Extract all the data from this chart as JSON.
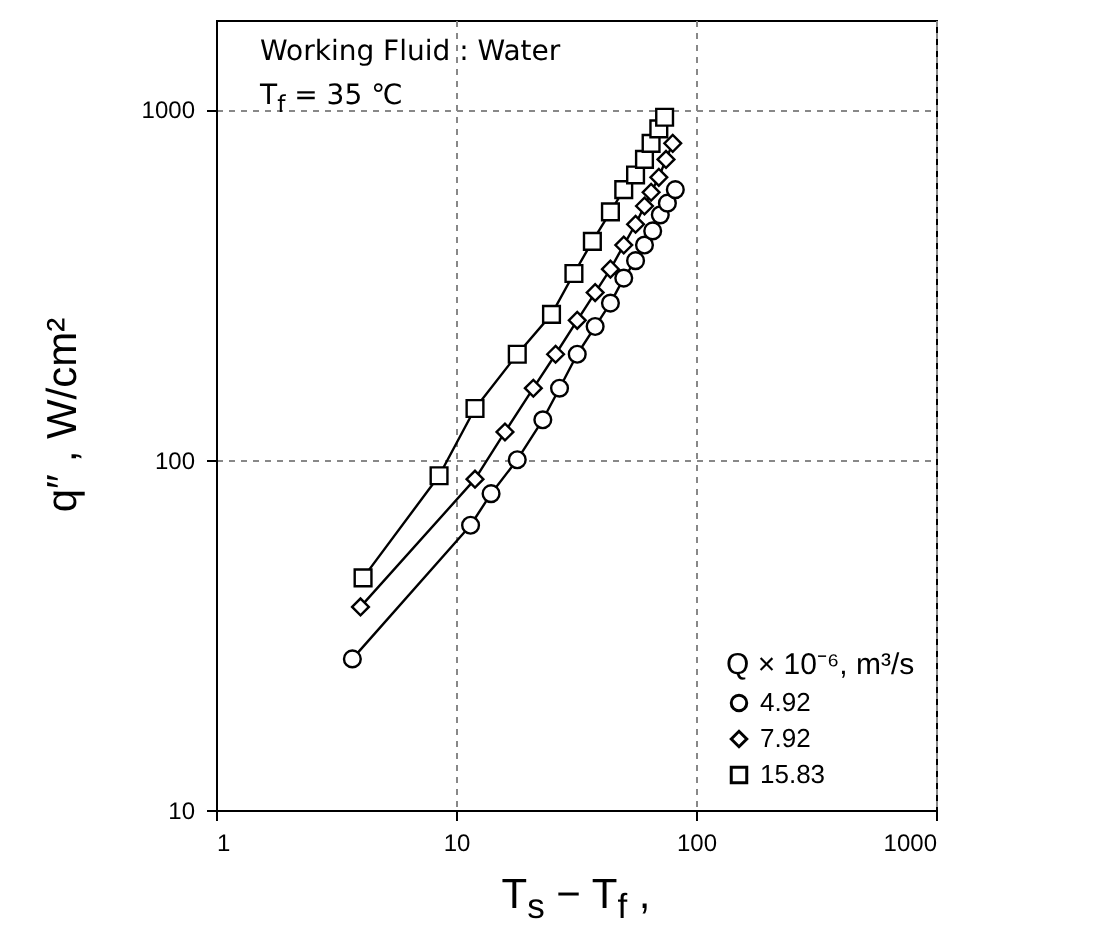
{
  "chart_data": {
    "type": "line",
    "xlabel": "T$_{s}$ − T$_{f}$ ,",
    "ylabel": "q″ ,  W/cm²",
    "legend_title": "Q × 10⁻⁶, m³/s",
    "annotations": [
      "Working Fluid : Water",
      "T$_{f}$ = 35 ℃"
    ],
    "log": "xy",
    "xlim": [
      1,
      1000
    ],
    "xticks": [
      1,
      10,
      100,
      1000
    ],
    "ylim": [
      10,
      1800
    ],
    "yticks": [
      10,
      100,
      1000
    ],
    "grid": true,
    "legend": "bottom right",
    "line_style": "solid",
    "series": [
      {
        "name": "4.92",
        "color": "#000000",
        "marker": "circle",
        "x": [
          3.7,
          11.5,
          14,
          18,
          23,
          27,
          32,
          38,
          44,
          50,
          56,
          61,
          66,
          71,
          76,
          82
        ],
        "values": [
          27,
          65,
          80,
          100,
          130,
          160,
          200,
          240,
          280,
          330,
          370,
          410,
          450,
          500,
          540,
          590
        ]
      },
      {
        "name": "7.92",
        "color": "#000000",
        "marker": "diamond",
        "x": [
          4,
          12,
          16,
          21,
          26,
          32,
          38,
          44,
          50,
          56,
          61,
          65,
          70,
          75,
          80
        ],
        "values": [
          38,
          88,
          120,
          160,
          200,
          250,
          300,
          350,
          410,
          470,
          530,
          580,
          640,
          720,
          800
        ]
      },
      {
        "name": "15.83",
        "color": "#000000",
        "marker": "square",
        "x": [
          4.1,
          8.5,
          12,
          18,
          25,
          31,
          37,
          44,
          50,
          56,
          61,
          65,
          70,
          74
        ],
        "values": [
          46,
          90,
          140,
          200,
          260,
          340,
          420,
          510,
          590,
          650,
          720,
          800,
          880,
          950
        ]
      }
    ]
  }
}
